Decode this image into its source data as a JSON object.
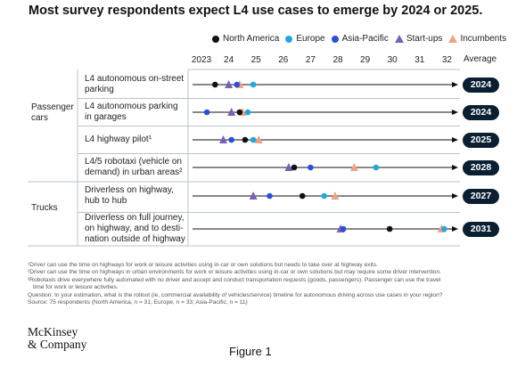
{
  "title": "Most survey respondents expect L4 use cases to emerge by 2024 or 2025.",
  "colors": {
    "north_america": "#111111",
    "europe": "#22a7e0",
    "asia_pacific": "#2b4fd6",
    "startups": "#7a5fb5",
    "incumbents": "#f0a283",
    "pill": "#0b1f33"
  },
  "legend": [
    {
      "label": "North America",
      "marker": "dot",
      "color": "#111111"
    },
    {
      "label": "Europe",
      "marker": "dot",
      "color": "#22a7e0"
    },
    {
      "label": "Asia-Pacific",
      "marker": "dot",
      "color": "#2b4fd6"
    },
    {
      "label": "Start-ups",
      "marker": "triangle",
      "color": "#7a5fb5"
    },
    {
      "label": "Incumbents",
      "marker": "triangle",
      "color": "#f0a283"
    }
  ],
  "average_header": "Average",
  "groups": [
    {
      "label": "Passenger cars"
    },
    {
      "label": "Trucks"
    }
  ],
  "chart_data": {
    "type": "scatter",
    "xlim": [
      2023,
      2032
    ],
    "x_ticks": [
      {
        "value": 2023,
        "label": "2023"
      },
      {
        "value": 2024,
        "label": "24"
      },
      {
        "value": 2025,
        "label": "25"
      },
      {
        "value": 2026,
        "label": "26"
      },
      {
        "value": 2027,
        "label": "27"
      },
      {
        "value": 2028,
        "label": "28"
      },
      {
        "value": 2029,
        "label": "29"
      },
      {
        "value": 2030,
        "label": "30"
      },
      {
        "value": 2031,
        "label": "31"
      },
      {
        "value": 2032,
        "label": "32"
      }
    ],
    "series": [
      {
        "name": "North America",
        "marker": "dot",
        "color": "#111111"
      },
      {
        "name": "Europe",
        "marker": "dot",
        "color": "#22a7e0"
      },
      {
        "name": "Asia-Pacific",
        "marker": "dot",
        "color": "#2b4fd6"
      },
      {
        "name": "Start-ups",
        "marker": "triangle",
        "color": "#7a5fb5"
      },
      {
        "name": "Incumbents",
        "marker": "triangle",
        "color": "#f0a283"
      }
    ],
    "rows": [
      {
        "group": "Passenger cars",
        "label": "L4 autonomous on-street parking",
        "average": "2024",
        "values": {
          "North America": 2023.5,
          "Europe": 2024.9,
          "Asia-Pacific": 2024.3,
          "Start-ups": 2024.0,
          "Incumbents": 2024.4
        }
      },
      {
        "group": "Passenger cars",
        "label": "L4 autonomous parking in garages",
        "average": "2024",
        "values": {
          "North America": 2024.4,
          "Europe": 2024.7,
          "Asia-Pacific": 2023.2,
          "Start-ups": 2024.1,
          "Incumbents": 2024.5
        }
      },
      {
        "group": "Passenger cars",
        "label": "L4 highway pilot¹",
        "average": "2025",
        "values": {
          "North America": 2024.6,
          "Europe": 2024.9,
          "Asia-Pacific": 2024.1,
          "Start-ups": 2023.8,
          "Incumbents": 2025.1
        }
      },
      {
        "group": "Passenger cars",
        "label": "L4/5 robotaxi (vehicle on demand) in urban areas²",
        "average": "2028",
        "values": {
          "North America": 2026.4,
          "Europe": 2029.4,
          "Asia-Pacific": 2027.0,
          "Start-ups": 2026.2,
          "Incumbents": 2028.6
        }
      },
      {
        "group": "Trucks",
        "label": "Driverless on highway, hub to hub",
        "average": "2027",
        "values": {
          "North America": 2026.7,
          "Europe": 2027.5,
          "Asia-Pacific": 2025.5,
          "Start-ups": 2024.9,
          "Incumbents": 2027.9
        }
      },
      {
        "group": "Trucks",
        "label": "Driverless on full journey, on highway, and to destination outside of highway",
        "average": "2031",
        "values": {
          "North America": 2029.9,
          "Europe": 2031.9,
          "Asia-Pacific": 2028.2,
          "Start-ups": 2028.1,
          "Incumbents": 2031.8
        }
      }
    ]
  },
  "row_label_lines": [
    [
      "L4 autonomous on-street",
      "parking"
    ],
    [
      "L4 autonomous parking",
      "in garages"
    ],
    [
      "L4 highway pilot¹"
    ],
    [
      "L4/5 robotaxi (vehicle on",
      "demand) in urban areas²"
    ],
    [
      "Driverless on highway,",
      "hub to hub"
    ],
    [
      "Driverless on full journey,",
      "on highway, and to desti-",
      "nation outside of highway"
    ]
  ],
  "group_label_lines": [
    [
      "Passenger",
      "cars"
    ],
    [
      "Trucks"
    ]
  ],
  "footnotes": [
    "¹Driver can use the time on highways for work or leisure activities using in-car or own solutions but needs to take over at highway exits.",
    "²Driver can use the time on highways in urban environments for work or leisure activities using in-car or own solutions but may require some driver intervention.",
    "³Robotaxis drive everywhere fully automated with no driver and accept and conduct transportation requests (goods, passengers). Passenger can use the travel",
    "  time for work or leisure activities.",
    "Question: In your estimation, what is the rollout (ie, commercial availability of vehicles/service) timeline for autonomous driving across use cases in your region?",
    "Source: 75 respondents (North America, n = 31; Europe, n = 33; Asia-Pacific, n = 11)"
  ],
  "logo_lines": [
    "McKinsey",
    "& Company"
  ],
  "caption": "Figure 1"
}
